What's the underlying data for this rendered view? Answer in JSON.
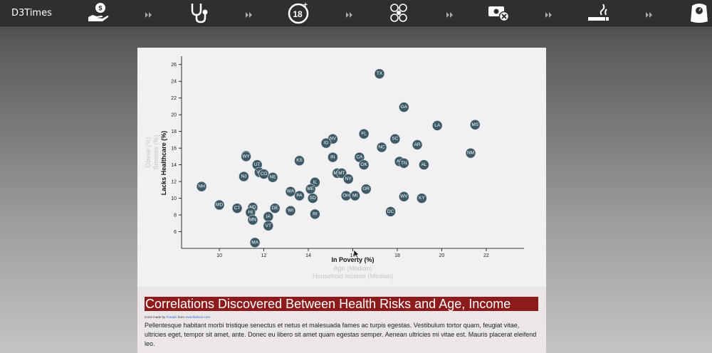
{
  "navbar": {
    "brand": "D3Times",
    "icons": [
      {
        "name": "money-hand-icon"
      },
      {
        "name": "stethoscope-icon"
      },
      {
        "name": "age-18-plus-icon"
      },
      {
        "name": "people-group-icon"
      },
      {
        "name": "money-cancel-icon"
      },
      {
        "name": "cigarette-icon"
      },
      {
        "name": "weight-scale-icon"
      }
    ]
  },
  "chart_data": {
    "type": "scatter",
    "xlabel": "In Poverty (%)",
    "ylabel": "Lacks Healthcare (%)",
    "x_alt_labels": [
      "Age (Median)",
      "Household Income (Median)"
    ],
    "y_alt_labels": [
      "Smokes (%)",
      "Obese (%)"
    ],
    "xlim": [
      8.3,
      23.7
    ],
    "ylim": [
      4,
      27
    ],
    "x_ticks": [
      10,
      12,
      14,
      16,
      18,
      20,
      22
    ],
    "y_ticks": [
      6,
      8,
      10,
      12,
      14,
      16,
      18,
      20,
      22,
      24,
      26
    ],
    "points": [
      {
        "label": "TX",
        "x": 17.2,
        "y": 24.9
      },
      {
        "label": "GA",
        "x": 18.3,
        "y": 20.9
      },
      {
        "label": "FL",
        "x": 16.5,
        "y": 17.7
      },
      {
        "label": "LA",
        "x": 19.8,
        "y": 18.7
      },
      {
        "label": "MS",
        "x": 21.5,
        "y": 18.8
      },
      {
        "label": "NV",
        "x": 15.1,
        "y": 17.1
      },
      {
        "label": "SC",
        "x": 17.9,
        "y": 17.1
      },
      {
        "label": "ID",
        "x": 14.8,
        "y": 16.6
      },
      {
        "label": "AR",
        "x": 18.9,
        "y": 16.4
      },
      {
        "label": "NC",
        "x": 17.3,
        "y": 16.1
      },
      {
        "label": "NM",
        "x": 21.3,
        "y": 15.4
      },
      {
        "label": "AK",
        "x": 11.2,
        "y": 15.1
      },
      {
        "label": "WY",
        "x": 11.2,
        "y": 15.0
      },
      {
        "label": "IN",
        "x": 15.1,
        "y": 14.9
      },
      {
        "label": "CA",
        "x": 16.3,
        "y": 14.9
      },
      {
        "label": "KS",
        "x": 13.6,
        "y": 14.5
      },
      {
        "label": "AZ",
        "x": 18.1,
        "y": 14.4
      },
      {
        "label": "TN",
        "x": 18.3,
        "y": 14.2
      },
      {
        "label": "UT",
        "x": 11.7,
        "y": 14.0
      },
      {
        "label": "OK",
        "x": 16.5,
        "y": 14.0
      },
      {
        "label": "AL",
        "x": 19.2,
        "y": 14.0
      },
      {
        "label": "VA",
        "x": 11.8,
        "y": 13.1
      },
      {
        "label": "CO",
        "x": 12.0,
        "y": 12.9
      },
      {
        "label": "MO",
        "x": 15.3,
        "y": 13.0
      },
      {
        "label": "MT",
        "x": 15.5,
        "y": 13.0
      },
      {
        "label": "NJ",
        "x": 11.1,
        "y": 12.6
      },
      {
        "label": "NE",
        "x": 12.4,
        "y": 12.5
      },
      {
        "label": "NY",
        "x": 15.8,
        "y": 12.3
      },
      {
        "label": "IL",
        "x": 14.3,
        "y": 11.9
      },
      {
        "label": "NH",
        "x": 9.2,
        "y": 11.4
      },
      {
        "label": "ME",
        "x": 14.1,
        "y": 11.1
      },
      {
        "label": "OR",
        "x": 16.6,
        "y": 11.1
      },
      {
        "label": "WA",
        "x": 13.2,
        "y": 10.8
      },
      {
        "label": "PA",
        "x": 13.6,
        "y": 10.3
      },
      {
        "label": "OH",
        "x": 15.7,
        "y": 10.3
      },
      {
        "label": "MI",
        "x": 16.1,
        "y": 10.3
      },
      {
        "label": "WV",
        "x": 18.3,
        "y": 10.2
      },
      {
        "label": "KY",
        "x": 19.1,
        "y": 10.0
      },
      {
        "label": "SD",
        "x": 14.2,
        "y": 10.0
      },
      {
        "label": "MD",
        "x": 10.0,
        "y": 9.2
      },
      {
        "label": "CT",
        "x": 10.8,
        "y": 8.8
      },
      {
        "label": "ND",
        "x": 11.5,
        "y": 8.9
      },
      {
        "label": "DE",
        "x": 12.5,
        "y": 8.8
      },
      {
        "label": "WI",
        "x": 13.2,
        "y": 8.5
      },
      {
        "label": "DC",
        "x": 17.7,
        "y": 8.4
      },
      {
        "label": "HI",
        "x": 11.4,
        "y": 8.3
      },
      {
        "label": "RI",
        "x": 14.3,
        "y": 8.1
      },
      {
        "label": "IA",
        "x": 12.2,
        "y": 7.8
      },
      {
        "label": "MN",
        "x": 11.5,
        "y": 7.4
      },
      {
        "label": "VT",
        "x": 12.2,
        "y": 6.7
      },
      {
        "label": "MA",
        "x": 11.6,
        "y": 4.7
      }
    ],
    "marker_color": "#3d5a66"
  },
  "article": {
    "headline": "Correlations Discovered Between Health Risks and Age, Income",
    "credit_prefix": "Icons made by",
    "credit_author": "Freepik",
    "credit_mid": "from",
    "credit_site": "www.flaticon.com",
    "body": "Pellentesque habitant morbi tristique senectus et netus et malesuada fames ac turpis egestas. Vestibulum tortor quam, feugiat vitae, ultricies eget, tempor sit amet, ante. Donec eu libero sit amet quam egestas semper. Aenean ultricies mi vitae est. Mauris placerat eleifend leo."
  }
}
